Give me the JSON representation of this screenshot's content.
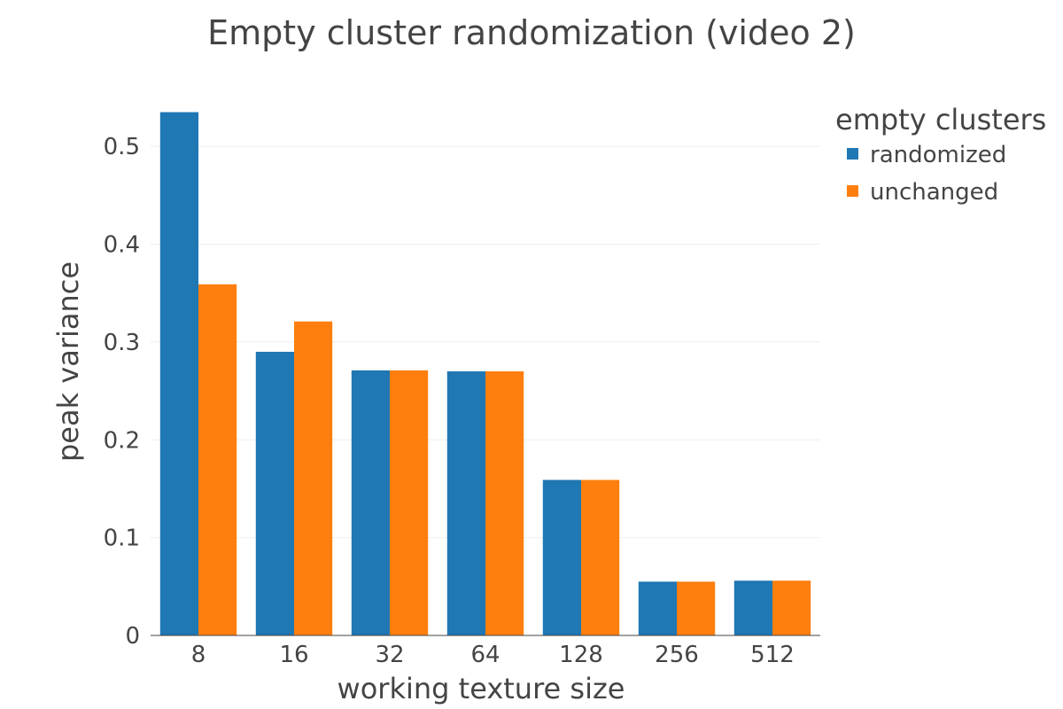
{
  "chart_data": {
    "type": "bar",
    "title": "Empty cluster randomization (video 2)",
    "xlabel": "working texture size",
    "ylabel": "peak variance",
    "categories": [
      "8",
      "16",
      "32",
      "64",
      "128",
      "256",
      "512"
    ],
    "series": [
      {
        "name": "randomized",
        "color": "#1f77b4",
        "values": [
          0.535,
          0.29,
          0.271,
          0.27,
          0.159,
          0.055,
          0.056
        ]
      },
      {
        "name": "unchanged",
        "color": "#ff7f0e",
        "values": [
          0.359,
          0.321,
          0.271,
          0.27,
          0.159,
          0.055,
          0.056
        ]
      }
    ],
    "ylim": [
      0,
      0.55
    ],
    "yticks": [
      "0",
      "0.1",
      "0.2",
      "0.3",
      "0.4",
      "0.5"
    ],
    "ytick_values": [
      0,
      0.1,
      0.2,
      0.3,
      0.4,
      0.5
    ],
    "grid": true,
    "legend": {
      "title": "empty clusters",
      "placement": "right"
    }
  }
}
